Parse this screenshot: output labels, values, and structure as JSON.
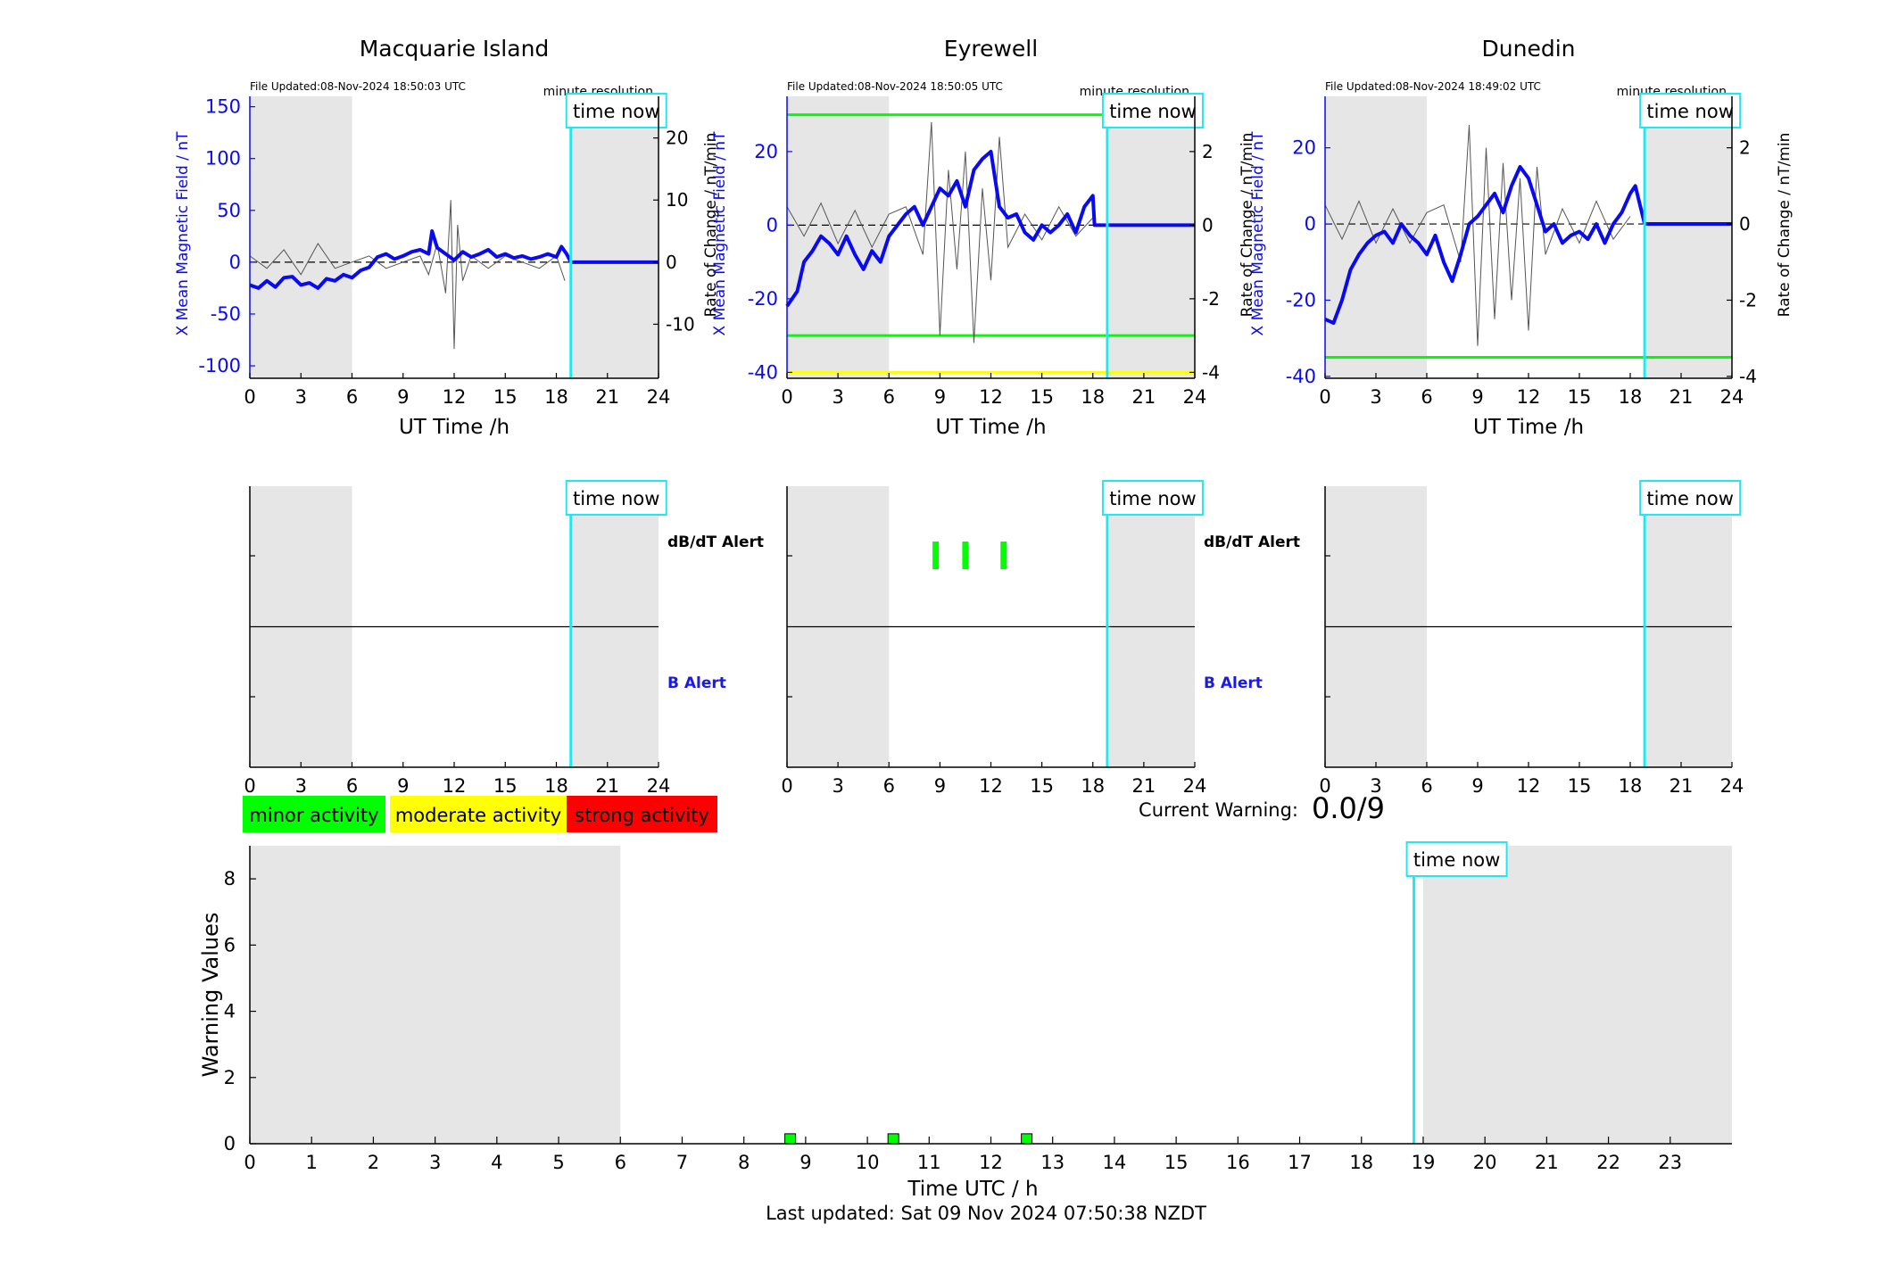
{
  "colors": {
    "field_blue": "#0a0af0",
    "rate_gray": "#555555",
    "time_now_cyan": "#20e8f0",
    "night_gray": "#e6e6e6",
    "minor_green": "#00ff00",
    "moderate_yellow": "#ffff00",
    "strong_red": "#ff0000",
    "alert_blue": "#1a1ae6"
  },
  "labels": {
    "time_now": "time now",
    "minute_resolution": "minute resolution",
    "ut_time_axis": "UT Time /h",
    "x_field_axis": "X Mean Magnetic Field / nT",
    "rate_axis": "Rate of Change / nT/min",
    "dbdt_alert": "dB/dT Alert",
    "b_alert": "B Alert",
    "current_warning_label": "Current Warning:",
    "current_warning_value": "0.0/9",
    "warning_values_axis": "Warning Values",
    "time_utc_axis": "Time UTC / h",
    "last_updated": "Last updated: Sat 09 Nov 2024 07:50:38 NZDT"
  },
  "legend": [
    {
      "label": "minor activity",
      "color": "#00ff00"
    },
    {
      "label": "moderate activity",
      "color": "#ffff00"
    },
    {
      "label": "strong activity",
      "color": "#ff0000"
    }
  ],
  "chart_data": [
    {
      "type": "line",
      "station": "Macquarie Island",
      "title": "Macquarie Island",
      "file_updated": "File Updated:08-Nov-2024 18:50:03 UTC",
      "resolution_note": "minute resolution",
      "xlabel": "UT Time /h",
      "ylabel_left": "X Mean Magnetic Field / nT",
      "ylabel_right": "Rate of Change / nT/min",
      "xlim": [
        0,
        24
      ],
      "xticks": [
        0,
        3,
        6,
        9,
        12,
        15,
        18,
        21,
        24
      ],
      "ylim_left": [
        -112,
        160
      ],
      "yticks_left": [
        -100,
        -50,
        0,
        50,
        100,
        150
      ],
      "ylim_right": [
        -18.7,
        26.7
      ],
      "yticks_right": [
        -10,
        0,
        10,
        20
      ],
      "night_shading": [
        [
          0,
          6
        ],
        [
          19,
          24
        ]
      ],
      "time_now": 18.85,
      "threshold_lines": [],
      "series": [
        {
          "axis": "left",
          "x": [
            0,
            0.5,
            1,
            1.5,
            2,
            2.5,
            3,
            3.5,
            4,
            4.5,
            5,
            5.5,
            6,
            6.5,
            7,
            7.5,
            8,
            8.5,
            9,
            9.5,
            10,
            10.5,
            10.7,
            11,
            11.5,
            12,
            12.5,
            13,
            13.5,
            14,
            14.5,
            15,
            15.5,
            16,
            16.5,
            17,
            17.5,
            18,
            18.3,
            18.6,
            18.85
          ],
          "y": [
            -22,
            -25,
            -18,
            -24,
            -15,
            -14,
            -22,
            -20,
            -25,
            -16,
            -18,
            -12,
            -15,
            -8,
            -5,
            5,
            8,
            3,
            6,
            10,
            12,
            8,
            30,
            14,
            8,
            2,
            10,
            5,
            8,
            12,
            5,
            8,
            4,
            6,
            3,
            5,
            8,
            5,
            15,
            8,
            0
          ]
        },
        {
          "axis": "right",
          "x": [
            0,
            1,
            2,
            3,
            4,
            5,
            6,
            7,
            8,
            9,
            10,
            10.5,
            11,
            11.5,
            11.8,
            12,
            12.2,
            12.5,
            13,
            14,
            15,
            16,
            17,
            18,
            18.5
          ],
          "y": [
            1,
            -1,
            2,
            -2,
            3,
            -1,
            0,
            1,
            -1,
            0,
            1,
            -2,
            3,
            -5,
            10,
            -14,
            6,
            -3,
            1,
            -1,
            1,
            0,
            -1,
            1,
            -3
          ]
        }
      ]
    },
    {
      "type": "line",
      "station": "Eyrewell",
      "title": "Eyrewell",
      "file_updated": "File Updated:08-Nov-2024 18:50:05 UTC",
      "resolution_note": "minute resolution",
      "xlabel": "UT Time /h",
      "ylabel_left": "X Mean Magnetic Field / nT",
      "ylabel_right": "Rate of Change / nT/min",
      "xlim": [
        0,
        24
      ],
      "xticks": [
        0,
        3,
        6,
        9,
        12,
        15,
        18,
        21,
        24
      ],
      "ylim_left": [
        -41.6,
        35
      ],
      "yticks_left": [
        -40,
        -20,
        0,
        20
      ],
      "ylim_right": [
        -4.16,
        3.5
      ],
      "yticks_right": [
        -4,
        -2,
        0,
        2
      ],
      "night_shading": [
        [
          0,
          6
        ],
        [
          19,
          24
        ]
      ],
      "time_now": 18.85,
      "threshold_lines": [
        {
          "axis": "left",
          "value": 30,
          "color": "#00ff00"
        },
        {
          "axis": "left",
          "value": -30,
          "color": "#00ff00"
        },
        {
          "axis": "left",
          "value": -40,
          "color": "#ffff00"
        }
      ],
      "series": [
        {
          "axis": "left",
          "x": [
            0,
            0.3,
            0.6,
            1,
            1.5,
            2,
            2.5,
            3,
            3.5,
            4,
            4.5,
            5,
            5.5,
            6,
            6.5,
            7,
            7.5,
            8,
            8.5,
            9,
            9.5,
            10,
            10.5,
            11,
            11.5,
            12,
            12.5,
            13,
            13.5,
            14,
            14.5,
            15,
            15.5,
            16,
            16.5,
            17,
            17.5,
            18,
            18.1,
            18.85
          ],
          "y": [
            -22,
            -20,
            -18,
            -10,
            -7,
            -3,
            -5,
            -8,
            -3,
            -8,
            -12,
            -7,
            -10,
            -3,
            0,
            3,
            5,
            0,
            5,
            10,
            8,
            12,
            5,
            15,
            18,
            20,
            5,
            2,
            3,
            -2,
            -4,
            0,
            -2,
            0,
            3,
            -2,
            5,
            8,
            0,
            0
          ]
        },
        {
          "axis": "right",
          "x": [
            0,
            1,
            2,
            3,
            4,
            5,
            6,
            7,
            8,
            8.5,
            9,
            9.5,
            10,
            10.5,
            11,
            11.5,
            12,
            12.5,
            13,
            14,
            15,
            16,
            17,
            18
          ],
          "y": [
            0.5,
            -0.3,
            0.6,
            -0.5,
            0.4,
            -0.6,
            0.3,
            0.5,
            -0.8,
            2.8,
            -3.0,
            1.5,
            -1.2,
            2.0,
            -3.2,
            1.0,
            -1.5,
            2.4,
            -0.6,
            0.3,
            -0.4,
            0.5,
            -0.3,
            0.2
          ]
        }
      ]
    },
    {
      "type": "line",
      "station": "Dunedin",
      "title": "Dunedin",
      "file_updated": "File Updated:08-Nov-2024 18:49:02 UTC",
      "resolution_note": "minute resolution",
      "xlabel": "UT Time /h",
      "ylabel_left": "X Mean Magnetic Field / nT",
      "ylabel_right": "Rate of Change / nT/min",
      "xlim": [
        0,
        24
      ],
      "xticks": [
        0,
        3,
        6,
        9,
        12,
        15,
        18,
        21,
        24
      ],
      "ylim_left": [
        -40.5,
        33.5
      ],
      "yticks_left": [
        -40,
        -20,
        0,
        20
      ],
      "ylim_right": [
        -4.05,
        3.35
      ],
      "yticks_right": [
        -4,
        -2,
        0,
        2
      ],
      "night_shading": [
        [
          0,
          6
        ],
        [
          19,
          24
        ]
      ],
      "time_now": 18.85,
      "threshold_lines": [
        {
          "axis": "left",
          "value": -35,
          "color": "#00ff00"
        }
      ],
      "series": [
        {
          "axis": "left",
          "x": [
            0,
            0.5,
            1,
            1.5,
            2,
            2.5,
            3,
            3.5,
            4,
            4.5,
            5,
            5.5,
            6,
            6.5,
            7,
            7.5,
            8,
            8.5,
            9,
            9.5,
            10,
            10.5,
            11,
            11.5,
            12,
            12.5,
            13,
            13.5,
            14,
            14.5,
            15,
            15.5,
            16,
            16.5,
            17,
            17.5,
            18,
            18.3,
            18.85
          ],
          "y": [
            -25,
            -26,
            -20,
            -12,
            -8,
            -5,
            -3,
            -2,
            -5,
            0,
            -3,
            -5,
            -8,
            -3,
            -10,
            -15,
            -8,
            0,
            2,
            5,
            8,
            3,
            10,
            15,
            12,
            5,
            -2,
            0,
            -5,
            -3,
            -2,
            -4,
            0,
            -5,
            0,
            3,
            8,
            10,
            0
          ]
        },
        {
          "axis": "right",
          "x": [
            0,
            1,
            2,
            3,
            4,
            5,
            6,
            7,
            8,
            8.5,
            9,
            9.5,
            10,
            10.5,
            11,
            11.5,
            12,
            12.5,
            13,
            14,
            15,
            16,
            17,
            18
          ],
          "y": [
            0.5,
            -0.4,
            0.6,
            -0.5,
            0.4,
            -0.5,
            0.3,
            0.5,
            -1.0,
            2.6,
            -3.2,
            2.0,
            -2.5,
            1.6,
            -2.0,
            1.2,
            -2.8,
            1.5,
            -0.8,
            0.4,
            -0.5,
            0.6,
            -0.4,
            0.2
          ]
        }
      ]
    },
    {
      "type": "bar",
      "panel": "alert",
      "station": "Macquarie Island",
      "xlim": [
        0,
        24
      ],
      "xticks": [
        0,
        3,
        6,
        9,
        12,
        15,
        18,
        21,
        24
      ],
      "night_shading": [
        [
          0,
          6
        ],
        [
          19,
          24
        ]
      ],
      "time_now": 18.85,
      "dbdt_alerts": [],
      "b_alerts": []
    },
    {
      "type": "bar",
      "panel": "alert",
      "station": "Eyrewell",
      "xlim": [
        0,
        24
      ],
      "xticks": [
        0,
        3,
        6,
        9,
        12,
        15,
        18,
        21,
        24
      ],
      "night_shading": [
        [
          0,
          6
        ],
        [
          19,
          24
        ]
      ],
      "time_now": 18.85,
      "dbdt_alerts": [
        8.75,
        10.5,
        12.75
      ],
      "b_alerts": []
    },
    {
      "type": "bar",
      "panel": "alert",
      "station": "Dunedin",
      "xlim": [
        0,
        24
      ],
      "xticks": [
        0,
        3,
        6,
        9,
        12,
        15,
        18,
        21,
        24
      ],
      "night_shading": [
        [
          0,
          6
        ],
        [
          19,
          24
        ]
      ],
      "time_now": 18.85,
      "dbdt_alerts": [],
      "b_alerts": []
    },
    {
      "type": "bar",
      "panel": "warning",
      "xlabel": "Time UTC / h",
      "ylabel": "Warning Values",
      "xlim": [
        0,
        24
      ],
      "xticks": [
        0,
        1,
        2,
        3,
        4,
        5,
        6,
        7,
        8,
        9,
        10,
        11,
        12,
        13,
        14,
        15,
        16,
        17,
        18,
        19,
        20,
        21,
        22,
        23
      ],
      "ylim": [
        0,
        9
      ],
      "yticks": [
        0,
        2,
        4,
        6,
        8
      ],
      "night_shading": [
        [
          0,
          6
        ],
        [
          19,
          24
        ]
      ],
      "time_now": 18.85,
      "bars": [
        {
          "x": 8.75,
          "value": 0.3
        },
        {
          "x": 10.42,
          "value": 0.3
        },
        {
          "x": 12.58,
          "value": 0.3
        }
      ]
    }
  ]
}
